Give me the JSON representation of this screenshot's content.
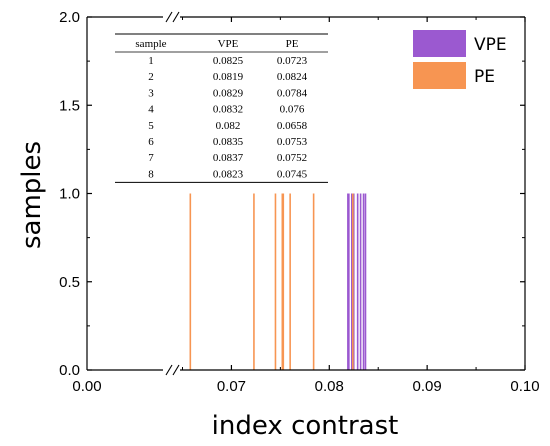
{
  "chart_data": {
    "type": "bar",
    "xlabel": "index contrast",
    "ylabel": "samples",
    "xlim": [
      0.0,
      0.1
    ],
    "ylim": [
      0.0,
      2.0
    ],
    "x_axis_break_after": 0.0,
    "x_ticks": [
      "0.00",
      "0.07",
      "0.08",
      "0.09",
      "0.10"
    ],
    "y_ticks": [
      "0.0",
      "0.5",
      "1.0",
      "1.5",
      "2.0"
    ],
    "legend_position": "top-right",
    "series": [
      {
        "name": "VPE",
        "color": "#9b59d0",
        "x": [
          0.0825,
          0.0819,
          0.0829,
          0.0832,
          0.082,
          0.0835,
          0.0837,
          0.0823
        ],
        "values": [
          1,
          1,
          1,
          1,
          1,
          1,
          1,
          1
        ]
      },
      {
        "name": "PE",
        "color": "#f79552",
        "x": [
          0.0723,
          0.0824,
          0.0784,
          0.076,
          0.0658,
          0.0753,
          0.0752,
          0.0745
        ],
        "values": [
          1,
          1,
          1,
          1,
          1,
          1,
          1,
          1
        ]
      }
    ],
    "table": {
      "columns": [
        "sample",
        "VPE",
        "PE"
      ],
      "rows": [
        [
          "1",
          "0.0825",
          "0.0723"
        ],
        [
          "2",
          "0.0819",
          "0.0824"
        ],
        [
          "3",
          "0.0829",
          "0.0784"
        ],
        [
          "4",
          "0.0832",
          "0.076"
        ],
        [
          "5",
          "0.082",
          "0.0658"
        ],
        [
          "6",
          "0.0835",
          "0.0753"
        ],
        [
          "7",
          "0.0837",
          "0.0752"
        ],
        [
          "8",
          "0.0823",
          "0.0745"
        ]
      ]
    }
  }
}
